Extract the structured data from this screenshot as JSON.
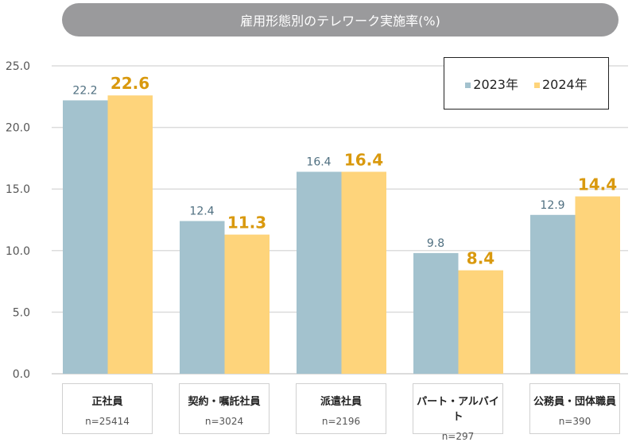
{
  "chart_data": {
    "type": "bar",
    "title": "雇用形態別のテレワーク実施率(%)",
    "categories": [
      "正社員",
      "契約・嘱託社員",
      "派遣社員",
      "パート・アルバイト",
      "公務員・団体職員"
    ],
    "sample_sizes": [
      "n=25414",
      "n=3024",
      "n=2196",
      "n=297",
      "n=390"
    ],
    "series": [
      {
        "name": "2023年",
        "values": [
          22.2,
          12.4,
          16.4,
          9.8,
          12.9
        ],
        "color": "#a3c2ce",
        "label_color": "#4f6f80"
      },
      {
        "name": "2024年",
        "values": [
          22.6,
          11.3,
          16.4,
          8.4,
          14.4
        ],
        "color": "#fed47b",
        "label_color": "#d9990e"
      }
    ],
    "ylim": [
      0,
      25
    ],
    "yticks": [
      "0.0",
      "5.0",
      "10.0",
      "15.0",
      "20.0",
      "25.0"
    ],
    "grid": true,
    "legend": "top-right"
  }
}
